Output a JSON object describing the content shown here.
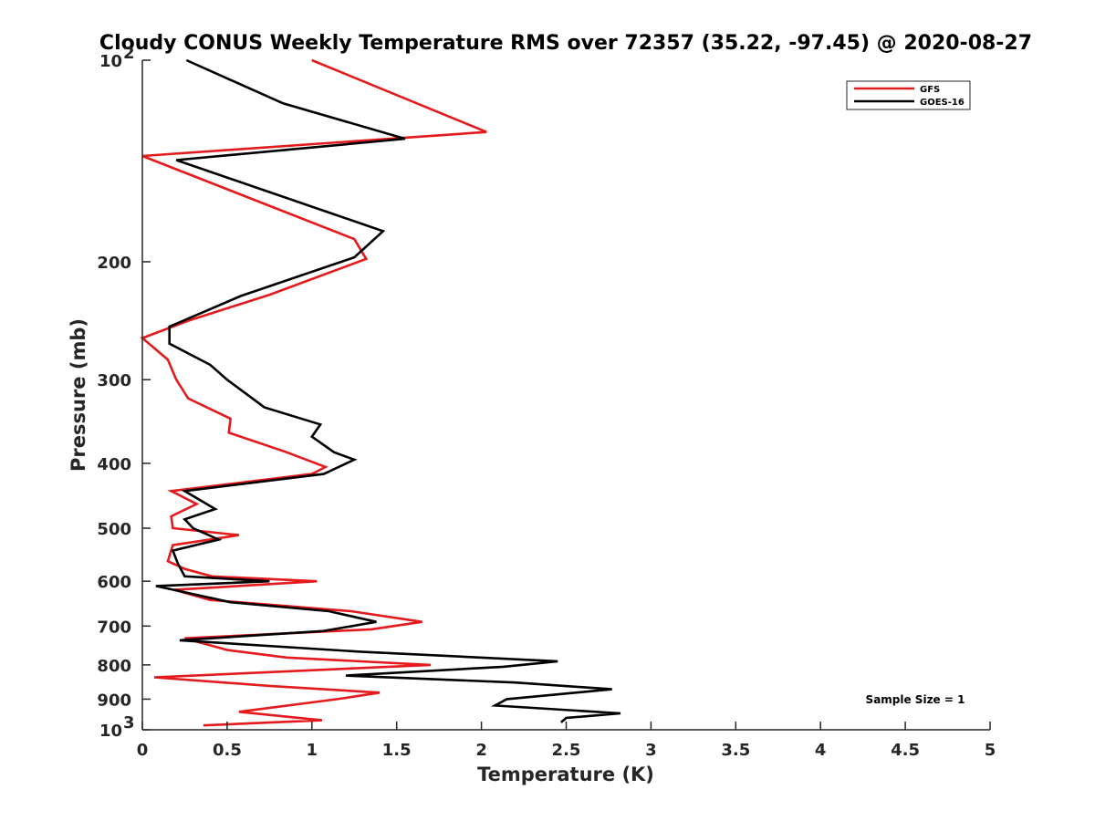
{
  "chart_data": {
    "type": "line",
    "title": "Cloudy CONUS Weekly Temperature RMS over 72357 (35.22, -97.45) @ 2020-08-27",
    "xlabel": "Temperature (K)",
    "ylabel": "Pressure (mb)",
    "xlim": [
      0,
      5
    ],
    "ylim": [
      100,
      1000
    ],
    "y_scale": "log",
    "y_reversed": true,
    "grid": false,
    "x_ticks": [
      0,
      0.5,
      1,
      1.5,
      2,
      2.5,
      3,
      3.5,
      4,
      4.5,
      5
    ],
    "x_tick_labels": [
      "0",
      "0.5",
      "1",
      "1.5",
      "2",
      "2.5",
      "3",
      "3.5",
      "4",
      "4.5",
      "5"
    ],
    "y_ticks": [
      200,
      300,
      400,
      500,
      600,
      700,
      800,
      900
    ],
    "y_tick_labels": [
      "200",
      "300",
      "400",
      "500",
      "600",
      "700",
      "800",
      "900"
    ],
    "y_ticks_power": [
      {
        "value": 100,
        "base": "10",
        "exp": "2"
      },
      {
        "value": 1000,
        "base": "10",
        "exp": "3"
      }
    ],
    "legend_position": "top-right",
    "annotation": "Sample Size = 1",
    "series": [
      {
        "name": "GFS",
        "color": "#e41a1c",
        "points": [
          [
            1.0,
            100
          ],
          [
            2.03,
            128
          ],
          [
            0.0,
            139
          ],
          [
            1.25,
            185
          ],
          [
            1.32,
            198
          ],
          [
            0.75,
            224
          ],
          [
            0.27,
            245
          ],
          [
            0.0,
            260
          ],
          [
            0.15,
            280
          ],
          [
            0.2,
            300
          ],
          [
            0.27,
            320
          ],
          [
            0.52,
            343
          ],
          [
            0.51,
            360
          ],
          [
            0.85,
            385
          ],
          [
            1.08,
            405
          ],
          [
            1.0,
            415
          ],
          [
            0.17,
            440
          ],
          [
            0.32,
            460
          ],
          [
            0.17,
            480
          ],
          [
            0.18,
            500
          ],
          [
            0.57,
            512
          ],
          [
            0.18,
            530
          ],
          [
            0.15,
            560
          ],
          [
            0.25,
            575
          ],
          [
            0.41,
            590
          ],
          [
            1.03,
            600
          ],
          [
            0.19,
            618
          ],
          [
            0.4,
            640
          ],
          [
            1.23,
            665
          ],
          [
            1.65,
            690
          ],
          [
            1.35,
            708
          ],
          [
            0.25,
            730
          ],
          [
            0.5,
            760
          ],
          [
            0.85,
            780
          ],
          [
            1.7,
            800
          ],
          [
            0.07,
            835
          ],
          [
            0.75,
            860
          ],
          [
            1.4,
            880
          ],
          [
            1.15,
            900
          ],
          [
            0.57,
            940
          ],
          [
            1.06,
            968
          ],
          [
            0.36,
            985
          ]
        ]
      },
      {
        "name": "GOES-16",
        "color": "#000000",
        "points": [
          [
            0.26,
            100
          ],
          [
            0.83,
            116
          ],
          [
            1.55,
            131
          ],
          [
            0.2,
            141
          ],
          [
            1.42,
            180
          ],
          [
            1.25,
            197
          ],
          [
            0.58,
            225
          ],
          [
            0.16,
            250
          ],
          [
            0.16,
            265
          ],
          [
            0.4,
            285
          ],
          [
            0.5,
            300
          ],
          [
            0.72,
            330
          ],
          [
            1.05,
            350
          ],
          [
            1.0,
            365
          ],
          [
            1.13,
            385
          ],
          [
            1.25,
            395
          ],
          [
            1.07,
            415
          ],
          [
            0.25,
            440
          ],
          [
            0.43,
            468
          ],
          [
            0.25,
            485
          ],
          [
            0.3,
            500
          ],
          [
            0.45,
            520
          ],
          [
            0.18,
            540
          ],
          [
            0.21,
            565
          ],
          [
            0.25,
            590
          ],
          [
            0.75,
            600
          ],
          [
            0.08,
            610
          ],
          [
            0.52,
            645
          ],
          [
            1.1,
            665
          ],
          [
            1.38,
            690
          ],
          [
            1.07,
            712
          ],
          [
            0.22,
            735
          ],
          [
            1.3,
            765
          ],
          [
            2.45,
            790
          ],
          [
            2.13,
            805
          ],
          [
            1.2,
            830
          ],
          [
            2.2,
            850
          ],
          [
            2.77,
            870
          ],
          [
            2.15,
            900
          ],
          [
            2.08,
            920
          ],
          [
            2.82,
            945
          ],
          [
            2.5,
            960
          ],
          [
            2.47,
            975
          ]
        ]
      }
    ]
  }
}
